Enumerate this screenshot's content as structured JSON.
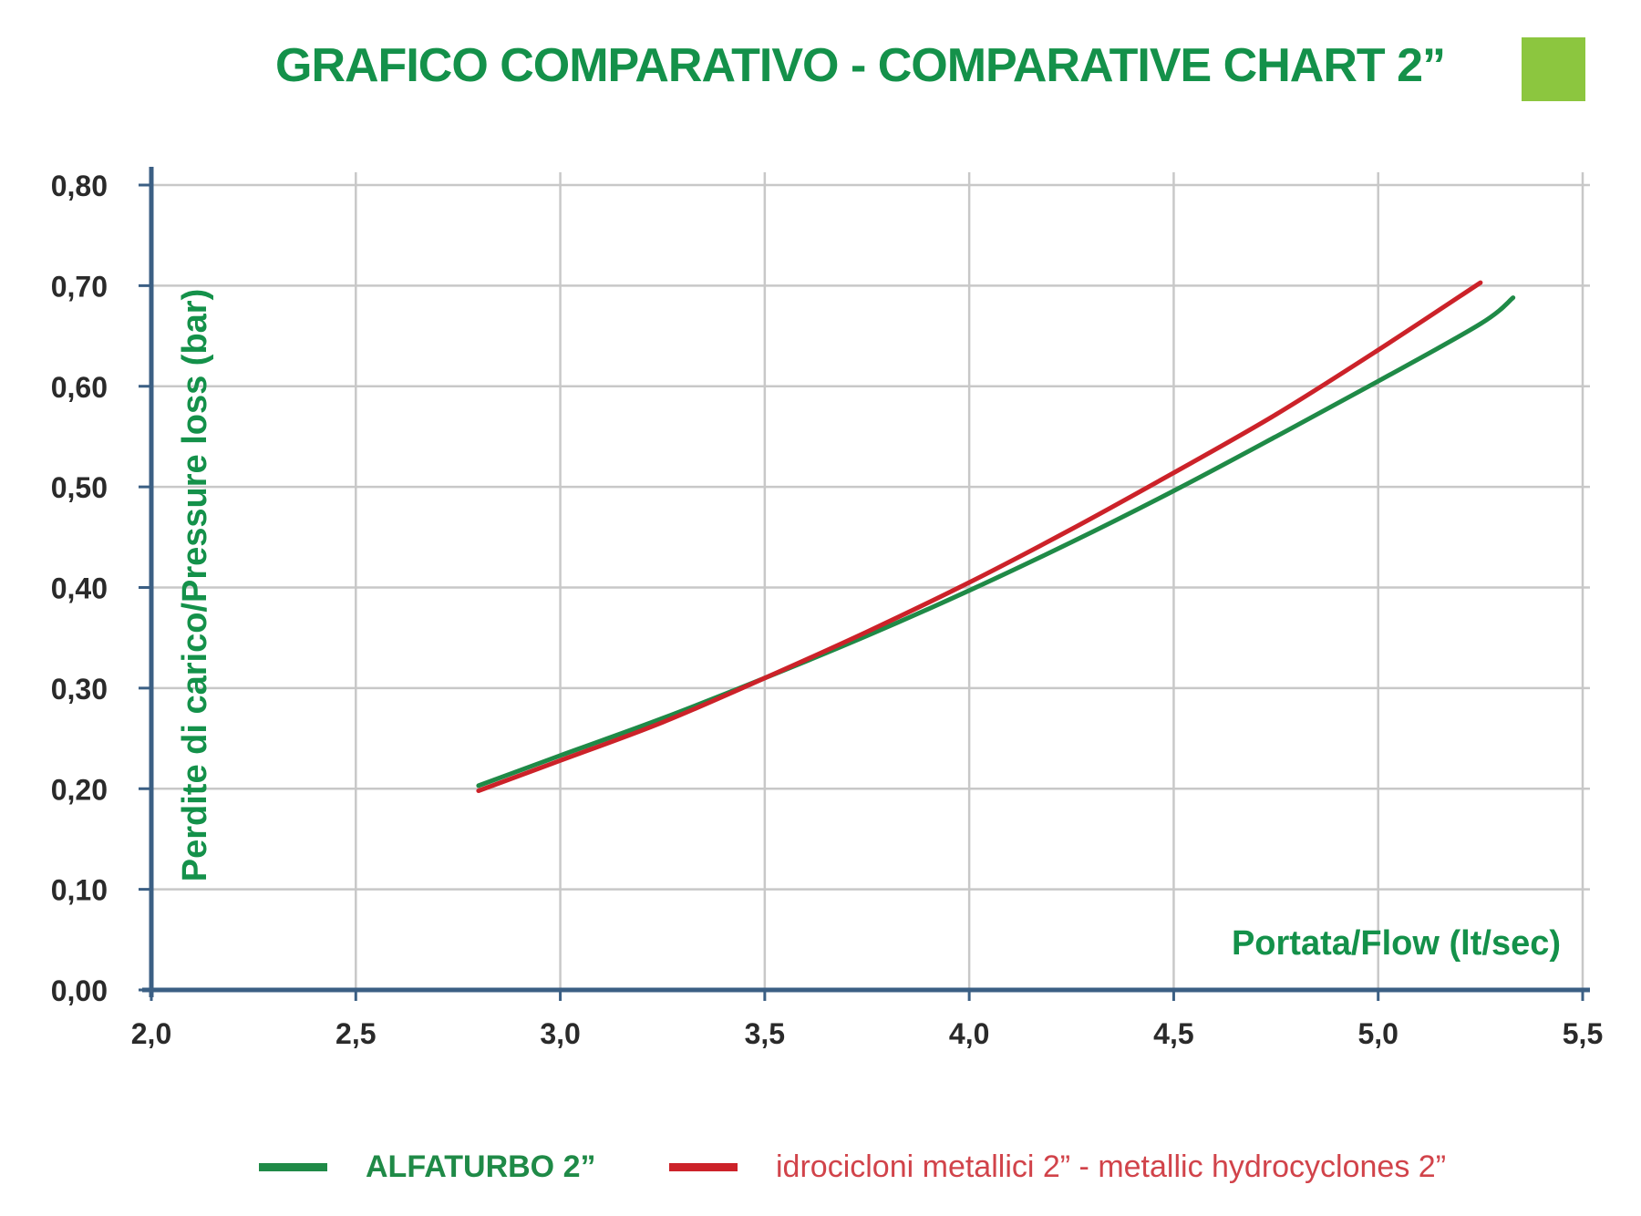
{
  "title": "GRAFICO COMPARATIVO - COMPARATIVE CHART 2”",
  "accent_square_color": "#8cc63f",
  "colors": {
    "title": "#14914a",
    "axis": "#3b5f84",
    "grid": "#c8c8c8",
    "tick_label": "#2a2a2a"
  },
  "chart_data": {
    "type": "line",
    "xlabel": "Portata/Flow (lt/sec)",
    "ylabel": "Perdite di carico/Pressure loss (bar)",
    "xlim": [
      2.0,
      5.5
    ],
    "ylim": [
      0.0,
      0.8
    ],
    "x_ticks": [
      "2,0",
      "2,5",
      "3,0",
      "3,5",
      "4,0",
      "4,5",
      "5,0",
      "5,5"
    ],
    "x_tick_values": [
      2.0,
      2.5,
      3.0,
      3.5,
      4.0,
      4.5,
      5.0,
      5.5
    ],
    "y_ticks": [
      "0,00",
      "0,10",
      "0,20",
      "0,30",
      "0,40",
      "0,50",
      "0,60",
      "0,70",
      "0,80"
    ],
    "y_tick_values": [
      0.0,
      0.1,
      0.2,
      0.3,
      0.4,
      0.5,
      0.6,
      0.7,
      0.8
    ],
    "grid": true,
    "legend_position": "bottom",
    "series": [
      {
        "name": "ALFATURBO 2”",
        "color": "#1f8a47",
        "x": [
          2.8,
          3.0,
          3.25,
          3.5,
          3.75,
          4.0,
          4.25,
          4.5,
          4.75,
          5.0,
          5.25,
          5.33
        ],
        "y": [
          0.203,
          0.233,
          0.27,
          0.31,
          0.352,
          0.397,
          0.445,
          0.496,
          0.55,
          0.605,
          0.662,
          0.688
        ]
      },
      {
        "name": "idrocicloni metallici 2” - metallic hydrocyclones 2”",
        "color": "#cc2229",
        "x": [
          2.8,
          3.0,
          3.25,
          3.5,
          3.75,
          4.0,
          4.25,
          4.5,
          4.75,
          5.0,
          5.25
        ],
        "y": [
          0.198,
          0.228,
          0.266,
          0.31,
          0.356,
          0.405,
          0.458,
          0.514,
          0.572,
          0.636,
          0.703
        ]
      }
    ]
  }
}
